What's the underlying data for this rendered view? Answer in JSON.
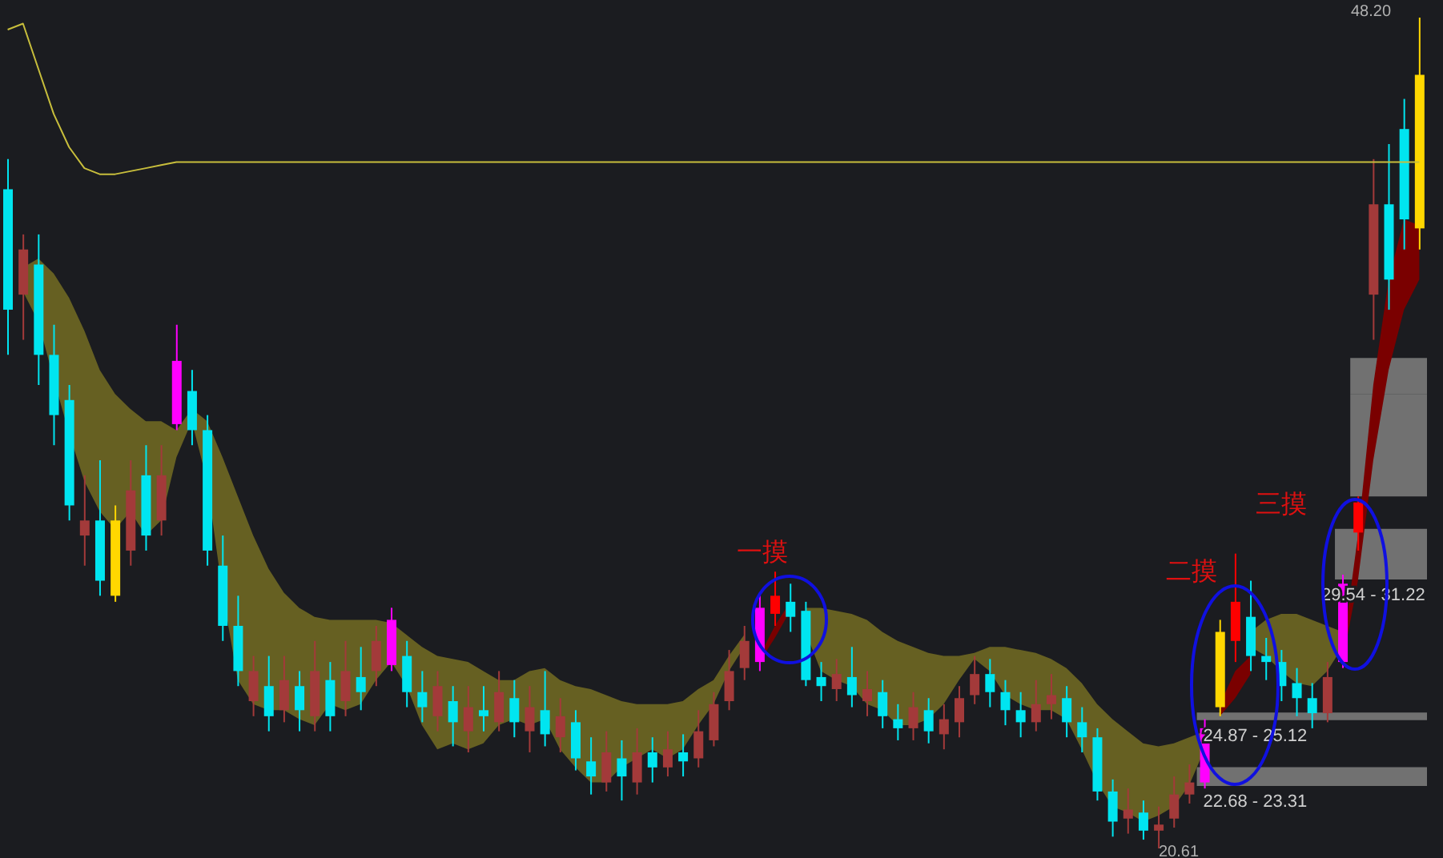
{
  "chart_data": {
    "type": "candlestick",
    "categories": [
      null,
      null,
      null,
      null,
      null,
      null,
      null,
      null,
      null,
      null,
      null,
      null,
      null,
      null,
      null,
      null,
      null,
      null,
      null,
      null,
      null,
      null,
      null,
      null,
      null,
      null,
      null,
      null,
      null,
      null,
      null,
      null,
      null,
      null,
      null,
      null,
      null,
      null,
      null,
      null,
      null,
      null,
      null,
      null,
      null,
      null,
      null,
      null,
      null,
      null,
      null,
      null,
      null,
      null,
      null,
      null,
      null,
      null,
      null,
      null,
      null,
      null,
      null,
      null,
      null,
      null,
      null,
      null,
      null,
      null,
      null,
      null,
      null,
      null,
      null,
      null,
      null,
      null,
      null,
      null,
      null,
      null,
      null,
      null,
      null,
      null,
      null,
      null,
      null,
      null,
      null,
      null,
      null
    ],
    "ohlc": [
      [
        42.5,
        43.5,
        37,
        38.5
      ],
      [
        39,
        41,
        37.5,
        40.5
      ],
      [
        40,
        41,
        36,
        37
      ],
      [
        37,
        38,
        34,
        35
      ],
      [
        35.5,
        36,
        31.5,
        32
      ],
      [
        31,
        33,
        30,
        31.5
      ],
      [
        31.5,
        33.5,
        29,
        29.5
      ],
      [
        29,
        32,
        28.8,
        31.5
      ],
      [
        30.5,
        33.5,
        30,
        32.5
      ],
      [
        33,
        34,
        30.5,
        31
      ],
      [
        31.5,
        34,
        31,
        33
      ],
      [
        34.7,
        38,
        34.5,
        36.8
      ],
      [
        35.8,
        36.5,
        34,
        34.5
      ],
      [
        34.5,
        35,
        30,
        30.5
      ],
      [
        30,
        31,
        27.5,
        28
      ],
      [
        28,
        29,
        26,
        26.5
      ],
      [
        25.5,
        27,
        25,
        26.5
      ],
      [
        26,
        27,
        24.5,
        25
      ],
      [
        25.2,
        27,
        24.8,
        26.2
      ],
      [
        26,
        26.5,
        24.5,
        25.2
      ],
      [
        25,
        27.5,
        24.5,
        26.5
      ],
      [
        26.2,
        26.8,
        24.5,
        25
      ],
      [
        25.5,
        27.5,
        25,
        26.5
      ],
      [
        26.3,
        27.3,
        25.2,
        25.8
      ],
      [
        26.5,
        28,
        26,
        27.5
      ],
      [
        26.7,
        28.6,
        26.5,
        28.2
      ],
      [
        27,
        27.5,
        25.3,
        25.8
      ],
      [
        25.8,
        26.5,
        24.8,
        25.3
      ],
      [
        25,
        26.5,
        24.5,
        26
      ],
      [
        25.5,
        26,
        24,
        24.8
      ],
      [
        24.5,
        26,
        23.8,
        25.3
      ],
      [
        25.2,
        26,
        24.5,
        25
      ],
      [
        24.8,
        26.5,
        24.5,
        25.8
      ],
      [
        25.6,
        26.2,
        24.3,
        24.8
      ],
      [
        24.5,
        26,
        23.8,
        25.3
      ],
      [
        25.2,
        26.5,
        24,
        24.4
      ],
      [
        24.3,
        25.6,
        23.8,
        25
      ],
      [
        24.8,
        25.2,
        23.2,
        23.6
      ],
      [
        23.5,
        24.3,
        22.4,
        23
      ],
      [
        22.8,
        24.5,
        22.5,
        23.8
      ],
      [
        23.6,
        24.2,
        22.2,
        23
      ],
      [
        22.8,
        24.6,
        22.4,
        23.8
      ],
      [
        23.8,
        24.3,
        22.8,
        23.3
      ],
      [
        23.3,
        24.5,
        23,
        23.9
      ],
      [
        23.8,
        24.4,
        23,
        23.5
      ],
      [
        23.6,
        25.2,
        23.3,
        24.5
      ],
      [
        24.2,
        25.8,
        24,
        25.4
      ],
      [
        25.5,
        27.2,
        25.2,
        26.5
      ],
      [
        26.6,
        28,
        26.2,
        27.5
      ],
      [
        26.8,
        29,
        26.5,
        28.6
      ],
      [
        28.4,
        29.8,
        28,
        29
      ],
      [
        28.8,
        29.4,
        27.8,
        28.3
      ],
      [
        28.5,
        28.8,
        26,
        26.2
      ],
      [
        26.3,
        26.8,
        25.5,
        26
      ],
      [
        25.9,
        26.9,
        25.5,
        26.4
      ],
      [
        26.3,
        27.3,
        25.3,
        25.7
      ],
      [
        25.5,
        26.5,
        25,
        25.9
      ],
      [
        25.8,
        26.2,
        24.6,
        25
      ],
      [
        24.9,
        25.4,
        24.2,
        24.6
      ],
      [
        24.6,
        25.8,
        24.2,
        25.3
      ],
      [
        25.2,
        25.6,
        24.1,
        24.5
      ],
      [
        24.4,
        25.4,
        23.9,
        24.9
      ],
      [
        24.8,
        26,
        24.3,
        25.6
      ],
      [
        25.7,
        27,
        25.4,
        26.4
      ],
      [
        26.4,
        26.9,
        25.3,
        25.8
      ],
      [
        25.8,
        26.2,
        24.7,
        25.2
      ],
      [
        25.2,
        25.8,
        24.3,
        24.8
      ],
      [
        24.8,
        26.2,
        24.5,
        25.4
      ],
      [
        25.4,
        26.4,
        24.9,
        25.7
      ],
      [
        25.6,
        26,
        24.3,
        24.8
      ],
      [
        24.8,
        25.3,
        23.8,
        24.3
      ],
      [
        24.3,
        24.6,
        22.2,
        22.5
      ],
      [
        22.5,
        22.9,
        21,
        21.5
      ],
      [
        21.6,
        22.6,
        21.1,
        21.9
      ],
      [
        21.8,
        22.2,
        20.9,
        21.2
      ],
      [
        21.2,
        22,
        20.61,
        21.4
      ],
      [
        21.6,
        23,
        21.3,
        22.4
      ],
      [
        22.4,
        23.4,
        22.1,
        22.8
      ],
      [
        22.8,
        24.9,
        22.6,
        24.6
      ],
      [
        25.3,
        28.2,
        25,
        27.8
      ],
      [
        27.5,
        30.4,
        26.8,
        28.8
      ],
      [
        28.3,
        29.5,
        26.5,
        27
      ],
      [
        27,
        27.6,
        26.2,
        26.8
      ],
      [
        26.8,
        27.2,
        25.5,
        26
      ],
      [
        26.1,
        26.6,
        25,
        25.6
      ],
      [
        25.6,
        26.1,
        24.6,
        25.1
      ],
      [
        25.1,
        26.8,
        24.8,
        26.3
      ],
      [
        26.8,
        29.7,
        26.6,
        29.4
      ],
      [
        31.1,
        32.3,
        30.5,
        32.1
      ],
      [
        39,
        43.5,
        37.5,
        42
      ],
      [
        42,
        44,
        38.5,
        39.5
      ],
      [
        44.5,
        45.5,
        40.5,
        41.5
      ],
      [
        41.2,
        48.2,
        40.5,
        46.3
      ]
    ],
    "colors": [
      "#00e5f0",
      "#a33a3a",
      "#00e5f0",
      "#00e5f0",
      "#00e5f0",
      "#a33a3a",
      "#00e5f0",
      "#ffd700",
      "#a33a3a",
      "#00e5f0",
      "#a33a3a",
      "#ff00ff",
      "#00e5f0",
      "#00e5f0",
      "#00e5f0",
      "#00e5f0",
      "#a33a3a",
      "#00e5f0",
      "#a33a3a",
      "#00e5f0",
      "#a33a3a",
      "#00e5f0",
      "#a33a3a",
      "#00e5f0",
      "#a33a3a",
      "#ff00ff",
      "#00e5f0",
      "#00e5f0",
      "#a33a3a",
      "#00e5f0",
      "#a33a3a",
      "#00e5f0",
      "#a33a3a",
      "#00e5f0",
      "#a33a3a",
      "#00e5f0",
      "#a33a3a",
      "#00e5f0",
      "#00e5f0",
      "#a33a3a",
      "#00e5f0",
      "#a33a3a",
      "#00e5f0",
      "#a33a3a",
      "#00e5f0",
      "#a33a3a",
      "#a33a3a",
      "#a33a3a",
      "#a33a3a",
      "#ff00ff",
      "#ff0000",
      "#00e5f0",
      "#00e5f0",
      "#00e5f0",
      "#a33a3a",
      "#00e5f0",
      "#a33a3a",
      "#00e5f0",
      "#00e5f0",
      "#a33a3a",
      "#00e5f0",
      "#a33a3a",
      "#a33a3a",
      "#a33a3a",
      "#00e5f0",
      "#00e5f0",
      "#00e5f0",
      "#a33a3a",
      "#a33a3a",
      "#00e5f0",
      "#00e5f0",
      "#00e5f0",
      "#00e5f0",
      "#a33a3a",
      "#00e5f0",
      "#a33a3a",
      "#a33a3a",
      "#a33a3a",
      "#ff00ff",
      "#ffd700",
      "#ff0000",
      "#00e5f0",
      "#00e5f0",
      "#00e5f0",
      "#00e5f0",
      "#00e5f0",
      "#a33a3a",
      "#ff00ff",
      "#ff0000",
      "#a33a3a",
      "#00e5f0",
      "#00e5f0",
      "#ffd700"
    ],
    "series": [
      {
        "type": "area",
        "color": "#666022",
        "values": [
          null,
          null,
          null,
          null,
          null,
          null,
          null,
          null,
          null,
          null,
          null,
          null,
          null,
          null,
          null,
          null,
          null,
          null,
          null,
          null,
          null,
          null,
          null,
          null,
          null,
          null,
          null,
          null,
          null,
          null,
          null,
          null,
          null,
          null,
          null,
          null,
          null,
          null,
          null,
          null,
          null,
          null,
          null,
          null,
          null,
          null,
          null,
          null,
          null,
          null,
          null,
          null,
          null,
          null,
          null,
          null,
          null,
          null,
          null,
          null,
          null,
          null,
          null,
          null,
          null,
          null,
          null,
          null,
          null,
          null,
          null,
          null,
          null,
          null,
          null,
          null,
          null,
          null,
          null,
          null,
          null,
          null,
          null,
          null,
          null,
          null,
          null,
          null,
          null,
          null,
          null,
          null,
          null
        ],
        "lower": [
          null,
          39.1,
          38.1,
          36.2,
          34.4,
          32.8,
          31.8,
          31.2,
          31.8,
          31.0,
          31.5,
          33.6,
          34.8,
          32.8,
          29.1,
          26.2,
          25.4,
          25.2,
          25.2,
          24.9,
          24.7,
          25.4,
          25.2,
          25.4,
          26.2,
          26.8,
          26.0,
          24.7,
          23.9,
          24.1,
          23.9,
          24.1,
          24.7,
          24.9,
          24.7,
          24.9,
          23.9,
          23.3,
          22.8,
          22.8,
          23.3,
          23.6,
          23.9,
          23.6,
          23.9,
          24.7,
          25.4,
          26.5,
          27.3,
          null,
          null,
          null,
          27.8,
          26.5,
          26.2,
          26.0,
          25.4,
          25.2,
          24.7,
          24.7,
          24.9,
          25.4,
          26.2,
          26.9,
          26.5,
          25.7,
          25.4,
          25.2,
          25.2,
          24.9,
          23.9,
          22.8,
          22.0,
          21.8,
          21.5,
          21.7,
          22.0,
          22.7,
          23.9,
          null,
          null,
          27.3,
          27.0,
          26.5,
          26.1,
          26.0,
          26.5,
          27.3,
          null,
          null,
          null,
          null,
          null
        ],
        "upper": [
          null,
          39.9,
          40.2,
          39.7,
          38.9,
          37.8,
          36.5,
          35.7,
          35.2,
          34.8,
          34.8,
          34.5,
          35.2,
          34.8,
          33.6,
          32.3,
          31.0,
          29.9,
          29.1,
          28.6,
          28.3,
          28.2,
          28.2,
          28.2,
          28.2,
          28.1,
          27.7,
          27.3,
          27.0,
          26.9,
          26.8,
          26.5,
          26.2,
          26.2,
          26.5,
          26.6,
          26.2,
          26.0,
          25.9,
          25.7,
          25.5,
          25.4,
          25.4,
          25.4,
          25.5,
          25.9,
          26.2,
          27.0,
          27.7,
          null,
          null,
          null,
          28.6,
          28.6,
          28.5,
          28.4,
          28.2,
          27.8,
          27.5,
          27.3,
          27.1,
          27.0,
          27.0,
          27.1,
          27.3,
          27.3,
          27.2,
          27.1,
          26.9,
          26.6,
          26.1,
          25.4,
          24.9,
          24.5,
          24.1,
          24.0,
          24.1,
          24.3,
          24.5,
          null,
          null,
          27.8,
          28.2,
          28.4,
          28.4,
          28.2,
          28.0,
          27.8,
          null,
          null,
          null,
          null,
          null
        ]
      },
      {
        "type": "area",
        "color": "#7a0000",
        "values": [
          null,
          null,
          null,
          null,
          null,
          null,
          null,
          null,
          null,
          null,
          null,
          null,
          null,
          null,
          null,
          null,
          null,
          null,
          null,
          null,
          null,
          null,
          null,
          null,
          null,
          null,
          null,
          null,
          null,
          null,
          null,
          null,
          null,
          null,
          null,
          null,
          null,
          null,
          null,
          null,
          null,
          null,
          null,
          null,
          null,
          null,
          null,
          null,
          null,
          null,
          null,
          null,
          null,
          null,
          null,
          null,
          null,
          null,
          null,
          null,
          null,
          null,
          null,
          null,
          null,
          null,
          null,
          null,
          null,
          null,
          null,
          null,
          null,
          null,
          null,
          null,
          null,
          null,
          null,
          null,
          null,
          null,
          null,
          null,
          null,
          null,
          null,
          null,
          null,
          null,
          null,
          null,
          null
        ],
        "lower": [
          null,
          null,
          null,
          null,
          null,
          null,
          null,
          null,
          null,
          null,
          null,
          null,
          null,
          null,
          null,
          null,
          null,
          null,
          null,
          null,
          null,
          null,
          null,
          null,
          null,
          null,
          null,
          null,
          null,
          null,
          null,
          null,
          null,
          null,
          null,
          null,
          null,
          null,
          null,
          null,
          null,
          null,
          null,
          null,
          null,
          null,
          null,
          null,
          null,
          26.8,
          27.6,
          28.5,
          null,
          null,
          null,
          null,
          null,
          null,
          null,
          null,
          null,
          null,
          null,
          null,
          null,
          null,
          null,
          null,
          null,
          null,
          null,
          null,
          null,
          null,
          null,
          null,
          null,
          null,
          null,
          25.0,
          25.6,
          26.4,
          null,
          null,
          null,
          null,
          null,
          26.8,
          29.5,
          33.5,
          36.5,
          38.5,
          39.5
        ],
        "upper": [
          null,
          null,
          null,
          null,
          null,
          null,
          null,
          null,
          null,
          null,
          null,
          null,
          null,
          null,
          null,
          null,
          null,
          null,
          null,
          null,
          null,
          null,
          null,
          null,
          null,
          null,
          null,
          null,
          null,
          null,
          null,
          null,
          null,
          null,
          null,
          null,
          null,
          null,
          null,
          null,
          null,
          null,
          null,
          null,
          null,
          null,
          null,
          null,
          null,
          27.0,
          28.0,
          28.8,
          null,
          null,
          null,
          null,
          null,
          null,
          null,
          null,
          null,
          null,
          null,
          null,
          null,
          null,
          null,
          null,
          null,
          null,
          null,
          null,
          null,
          null,
          null,
          null,
          null,
          null,
          null,
          25.4,
          26.5,
          27.0,
          null,
          null,
          null,
          null,
          null,
          27.2,
          31.0,
          36.0,
          39.5,
          41.5,
          41.3
        ]
      },
      {
        "type": "line",
        "color": "#c8be3c",
        "values": [
          47.8,
          48.0,
          46.5,
          45.0,
          43.9,
          43.2,
          43.0,
          43.0,
          43.1,
          43.2,
          43.3,
          43.4,
          43.4,
          43.4,
          43.4,
          43.4,
          43.4,
          43.4,
          43.4,
          43.4,
          43.4,
          43.4,
          43.4,
          43.4,
          43.4,
          43.4,
          43.4,
          43.4,
          43.4,
          43.4,
          43.4,
          43.4,
          43.4,
          43.4,
          43.4,
          43.4,
          43.4,
          43.4,
          43.4,
          43.4,
          43.4,
          43.4,
          43.4,
          43.4,
          43.4,
          43.4,
          43.4,
          43.4,
          43.4,
          43.4,
          43.4,
          43.4,
          43.4,
          43.4,
          43.4,
          43.4,
          43.4,
          43.4,
          43.4,
          43.4,
          43.4,
          43.4,
          43.4,
          43.4,
          43.4,
          43.4,
          43.4,
          43.4,
          43.4,
          43.4,
          43.4,
          43.4,
          43.4,
          43.4,
          43.4,
          43.4,
          43.4,
          43.4,
          43.4,
          43.4,
          43.4,
          43.4,
          43.4,
          43.4,
          43.4,
          43.4,
          43.4,
          43.4,
          43.4,
          43.4,
          43.4,
          43.4,
          43.4
        ]
      }
    ],
    "bands": [
      {
        "axis": "y",
        "from": 24.87,
        "to": 25.12,
        "label": "24.87 - 25.12",
        "color": "#808080"
      },
      {
        "axis": "y",
        "from": 22.68,
        "to": 23.31,
        "label": "22.68 - 23.31",
        "color": "#808080"
      },
      {
        "axis": "y",
        "from": 29.54,
        "to": 31.22,
        "label": "29.54 - 31.22",
        "color": "#808080"
      },
      {
        "axis": "y",
        "from": 32.3,
        "to": 35.7,
        "color": "#808080"
      },
      {
        "axis": "y",
        "from": 35.7,
        "to": 36.9,
        "color": "#808080"
      }
    ],
    "annotations": [
      "一摸",
      "二摸",
      "三摸",
      "48.20",
      "20.61"
    ]
  }
}
